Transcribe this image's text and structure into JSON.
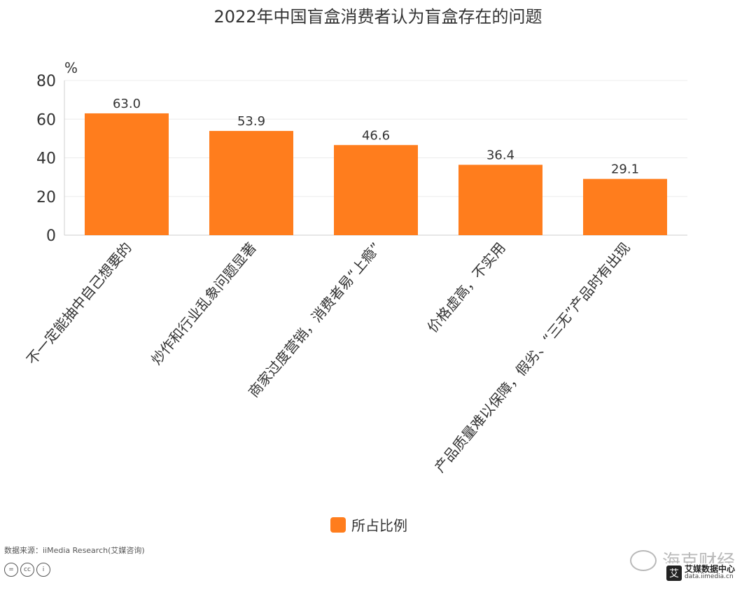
{
  "chart_data": {
    "type": "bar",
    "title": "2022年中国盲盒消费者认为盲盒存在的问题",
    "ylabel": "%",
    "ylim": [
      0,
      80
    ],
    "yticks": [
      "0",
      "20",
      "40",
      "60",
      "80"
    ],
    "categories": [
      "不一定能抽中自己想要的",
      "炒作和行业乱象问题显著",
      "商家过度营销，消费者易“上瘾”",
      "价格虚高，不实用",
      "产品质量难以保障，假劣、“三无”产品时有出现"
    ],
    "series": [
      {
        "name": "所占比例",
        "values": [
          63.0,
          53.9,
          46.6,
          36.4,
          29.1
        ],
        "labels": [
          "63.0",
          "53.9",
          "46.6",
          "36.4",
          "29.1"
        ]
      }
    ],
    "grid": true,
    "legend": "bottom-center",
    "bar_color": "#ff7d1d"
  },
  "footer": {
    "source": "数据来源：iiMedia Research(艾媒咨询)",
    "cc_icons": [
      "=",
      "cc",
      "i"
    ],
    "watermark": "海克财经",
    "brand_name": "艾媒数据中心",
    "brand_url": "data.iimedia.cn",
    "brand_logo": "艾"
  }
}
